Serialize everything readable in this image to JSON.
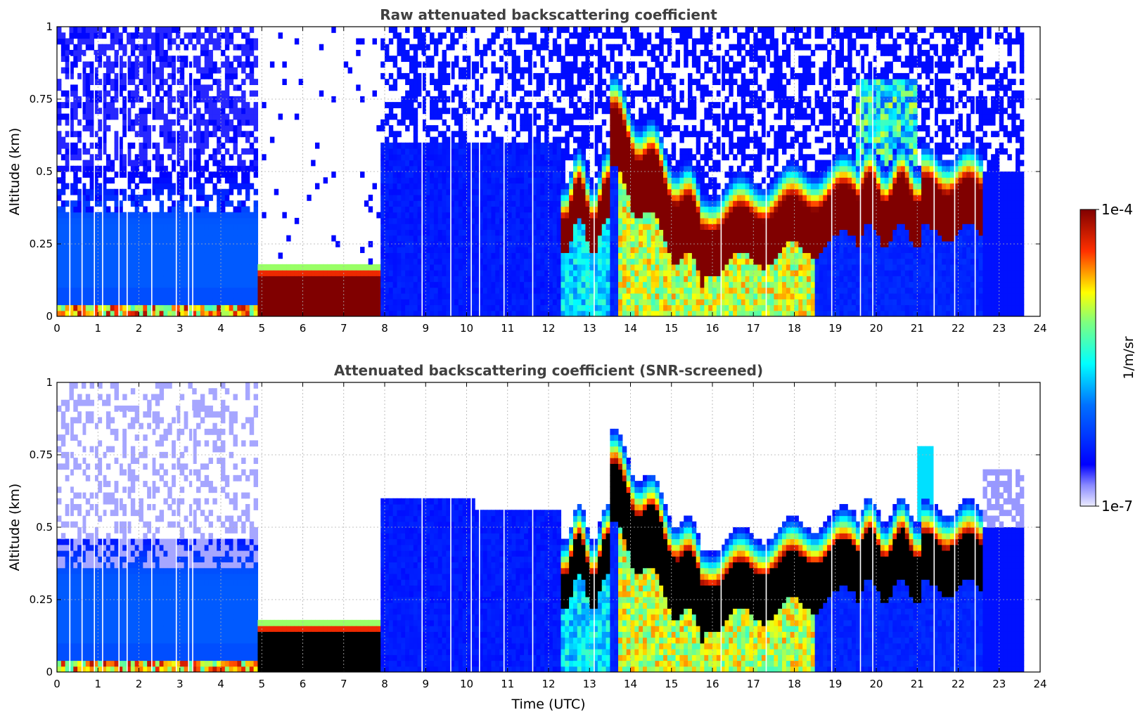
{
  "chart_data": [
    {
      "type": "heatmap",
      "title": "Raw attenuated backscattering coefficient",
      "xlabel": "",
      "ylabel": "Altitude (km)",
      "xlim": [
        0,
        24
      ],
      "ylim": [
        0,
        1
      ],
      "xticks": [
        "0",
        "1",
        "2",
        "3",
        "4",
        "5",
        "6",
        "7",
        "8",
        "9",
        "10",
        "11",
        "12",
        "13",
        "14",
        "15",
        "16",
        "17",
        "18",
        "19",
        "20",
        "21",
        "22",
        "23",
        "24"
      ],
      "yticks": [
        "0",
        "0.25",
        "0.5",
        "0.75",
        "1"
      ],
      "grid": true,
      "data_extent_x": [
        0,
        23.6
      ],
      "features": [
        {
          "x": [
            0,
            4.9
          ],
          "y": [
            0,
            0.05
          ],
          "level": "high"
        },
        {
          "x": [
            4.9,
            7.9
          ],
          "y": [
            0,
            0.18
          ],
          "level": "very-high"
        },
        {
          "x": [
            12.3,
            13.5
          ],
          "y": [
            0.35,
            0.55
          ],
          "level": "high"
        },
        {
          "x": [
            13.5,
            22.6
          ],
          "y": [
            0.28,
            0.55
          ],
          "level": "very-high"
        },
        {
          "x": [
            19.6,
            21
          ],
          "y": [
            0.5,
            0.8
          ],
          "level": "medium"
        }
      ]
    },
    {
      "type": "heatmap",
      "title": "Attenuated backscattering coefficient (SNR-screened)",
      "xlabel": "Time (UTC)",
      "ylabel": "Altitude (km)",
      "xlim": [
        0,
        24
      ],
      "ylim": [
        0,
        1
      ],
      "xticks": [
        "0",
        "1",
        "2",
        "3",
        "4",
        "5",
        "6",
        "7",
        "8",
        "9",
        "10",
        "11",
        "12",
        "13",
        "14",
        "15",
        "16",
        "17",
        "18",
        "19",
        "20",
        "21",
        "22",
        "23",
        "24"
      ],
      "yticks": [
        "0",
        "0.25",
        "0.5",
        "0.75",
        "1"
      ],
      "grid": true,
      "data_extent_x": [
        0,
        23.6
      ]
    }
  ],
  "colorbar": {
    "label": "1/m/sr",
    "max_label": "1e-4",
    "min_label": "1e-7",
    "scale": "log",
    "range": [
      1e-07,
      0.0001
    ],
    "colormap": "jet"
  },
  "colors": {
    "title": "#404040",
    "very_high": "#800000",
    "saturated_screened": "#000000"
  }
}
